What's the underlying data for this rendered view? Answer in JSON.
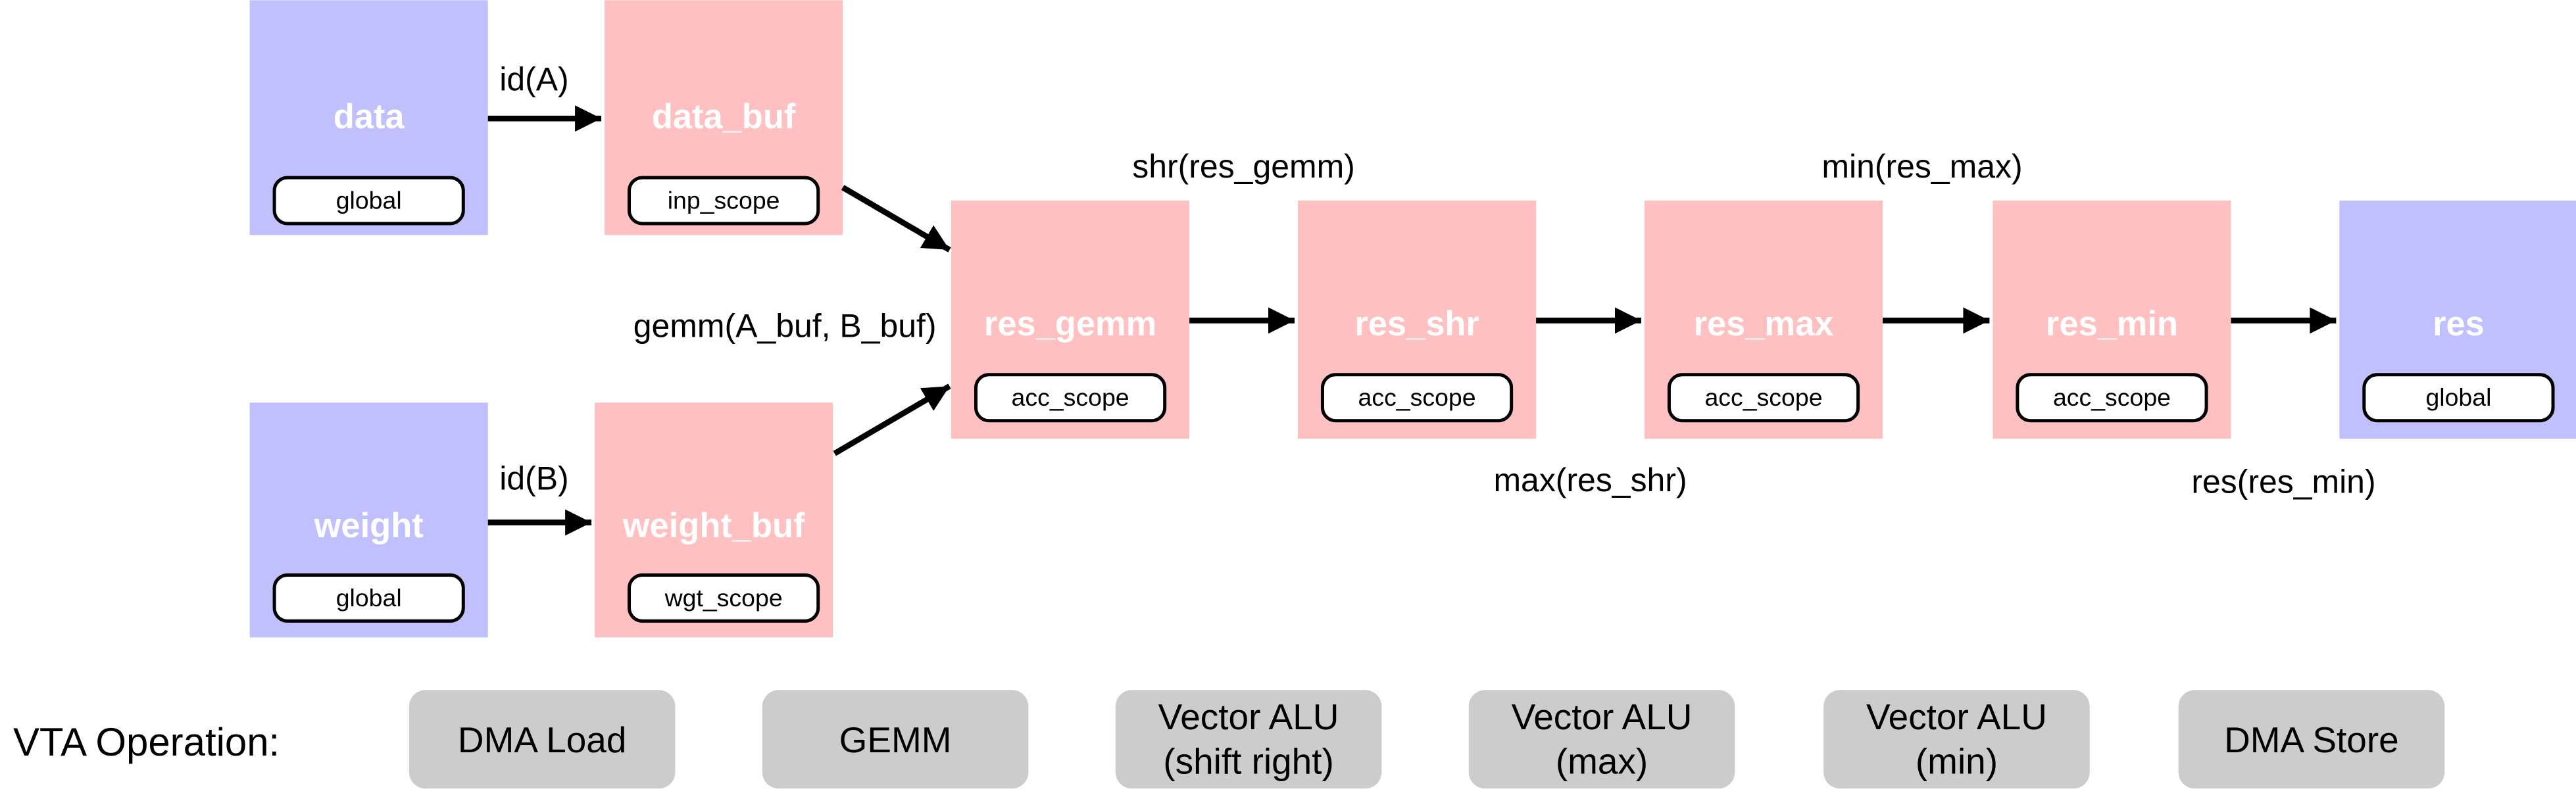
{
  "colors": {
    "global_node": "#c0c0fe",
    "buffer_node": "#fec0c0",
    "operation": "#cccccc"
  },
  "nodes": {
    "data": {
      "title": "data",
      "scope": "global"
    },
    "data_buf": {
      "title": "data_buf",
      "scope": "inp_scope"
    },
    "weight": {
      "title": "weight",
      "scope": "global"
    },
    "weight_buf": {
      "title": "weight_buf",
      "scope": "wgt_scope"
    },
    "res_gemm": {
      "title": "res_gemm",
      "scope": "acc_scope"
    },
    "res_shr": {
      "title": "res_shr",
      "scope": "acc_scope"
    },
    "res_max": {
      "title": "res_max",
      "scope": "acc_scope"
    },
    "res_min": {
      "title": "res_min",
      "scope": "acc_scope"
    },
    "res": {
      "title": "res",
      "scope": "global"
    }
  },
  "edges": {
    "id_a": "id(A)",
    "id_b": "id(B)",
    "gemm": "gemm(A_buf, B_buf)",
    "shr": "shr(res_gemm)",
    "max": "max(res_shr)",
    "min": "min(res_max)",
    "res": "res(res_min)"
  },
  "operations": {
    "label": "VTA Operation:",
    "items": [
      {
        "line1": "DMA Load",
        "line2": ""
      },
      {
        "line1": "GEMM",
        "line2": ""
      },
      {
        "line1": "Vector ALU",
        "line2": "(shift right)"
      },
      {
        "line1": "Vector ALU",
        "line2": "(max)"
      },
      {
        "line1": "Vector ALU",
        "line2": "(min)"
      },
      {
        "line1": "DMA Store",
        "line2": ""
      }
    ]
  }
}
